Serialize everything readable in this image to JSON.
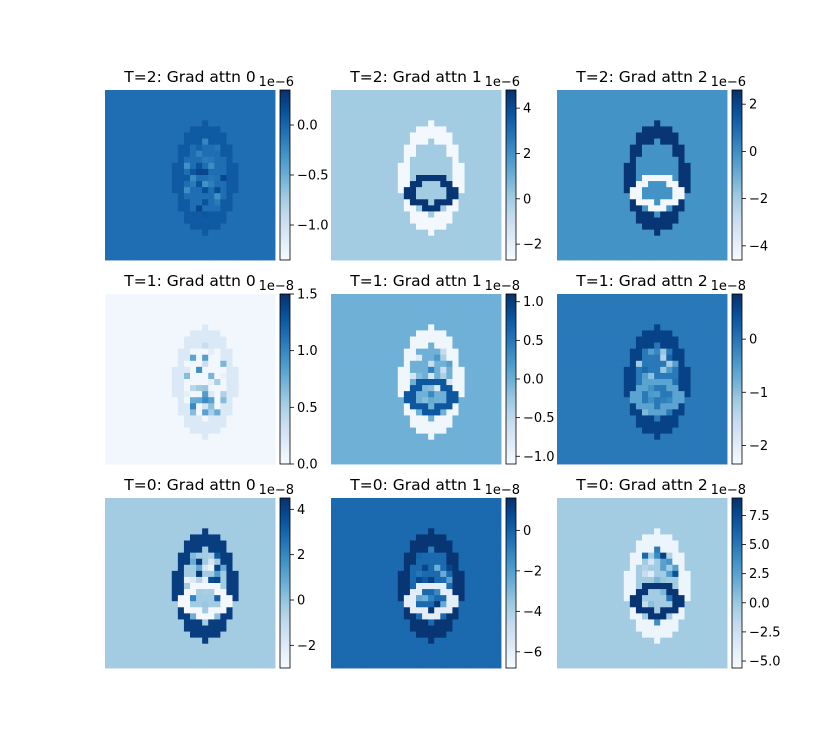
{
  "figure": {
    "background": "#ffffff",
    "colormap": "Blues"
  },
  "chart_data": [
    {
      "type": "heatmap",
      "title": "T=2: Grad attn 0",
      "colorbar": {
        "exponent": "1e−6",
        "range": [
          -1.35,
          0.35
        ],
        "ticks": [
          0.0,
          -0.5,
          -1.0
        ],
        "tick_labels": [
          "0.0",
          "−0.5",
          "−1.0"
        ]
      }
    },
    {
      "type": "heatmap",
      "title": "T=2: Grad attn 1",
      "colorbar": {
        "exponent": "1e−6",
        "range": [
          -2.7,
          4.8
        ],
        "ticks": [
          4,
          2,
          0,
          -2
        ],
        "tick_labels": [
          "4",
          "2",
          "0",
          "−2"
        ]
      }
    },
    {
      "type": "heatmap",
      "title": "T=2: Grad attn 2",
      "colorbar": {
        "exponent": "1e−6",
        "range": [
          -4.6,
          2.6
        ],
        "ticks": [
          2,
          0,
          -2,
          -4
        ],
        "tick_labels": [
          "2",
          "0",
          "−2",
          "−4"
        ]
      }
    },
    {
      "type": "heatmap",
      "title": "T=1: Grad attn 0",
      "colorbar": {
        "exponent": "1e−8",
        "range": [
          0.0,
          1.5
        ],
        "ticks": [
          1.5,
          1.0,
          0.5,
          0.0
        ],
        "tick_labels": [
          "1.5",
          "1.0",
          "0.5",
          "0.0"
        ]
      }
    },
    {
      "type": "heatmap",
      "title": "T=1: Grad attn 1",
      "colorbar": {
        "exponent": "1e−8",
        "range": [
          -1.1,
          1.1
        ],
        "ticks": [
          1.0,
          0.5,
          0.0,
          -0.5,
          -1.0
        ],
        "tick_labels": [
          "1.0",
          "0.5",
          "0.0",
          "−0.5",
          "−1.0"
        ]
      }
    },
    {
      "type": "heatmap",
      "title": "T=1: Grad attn 2",
      "colorbar": {
        "exponent": "1e−8",
        "range": [
          -2.35,
          0.85
        ],
        "ticks": [
          0,
          -1,
          -2
        ],
        "tick_labels": [
          "0",
          "−1",
          "−2"
        ]
      }
    },
    {
      "type": "heatmap",
      "title": "T=0: Grad attn 0",
      "colorbar": {
        "exponent": "1e−8",
        "range": [
          -3.0,
          4.5
        ],
        "ticks": [
          4,
          2,
          0,
          -2
        ],
        "tick_labels": [
          "4",
          "2",
          "0",
          "−2"
        ]
      }
    },
    {
      "type": "heatmap",
      "title": "T=0: Grad attn 1",
      "colorbar": {
        "exponent": "1e−8",
        "range": [
          -6.8,
          1.6
        ],
        "ticks": [
          0,
          -2,
          -4,
          -6
        ],
        "tick_labels": [
          "0",
          "−2",
          "−4",
          "−6"
        ]
      }
    },
    {
      "type": "heatmap",
      "title": "T=0: Grad attn 2",
      "colorbar": {
        "exponent": "1e−8",
        "range": [
          -5.6,
          9.0
        ],
        "ticks": [
          7.5,
          5.0,
          2.5,
          0.0,
          -2.5,
          -5.0
        ],
        "tick_labels": [
          "7.5",
          "5.0",
          "2.5",
          "0.0",
          "−2.5",
          "−5.0"
        ]
      }
    }
  ]
}
